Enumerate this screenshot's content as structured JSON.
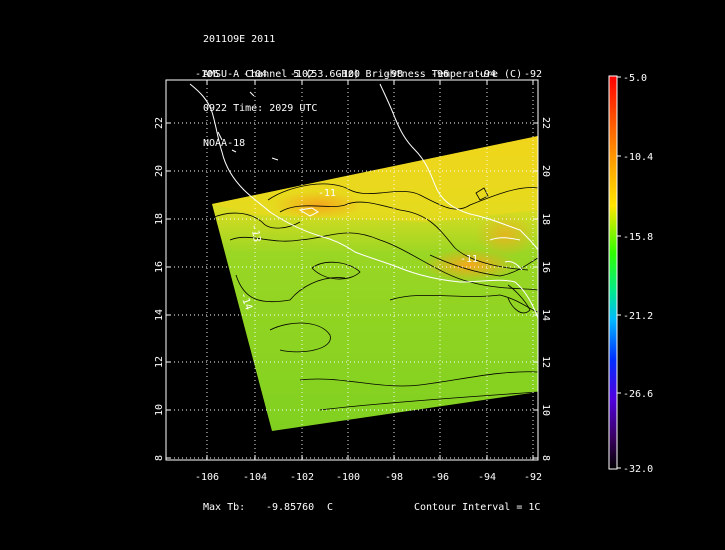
{
  "header": {
    "storm_line": "2011O9E 2011",
    "product_line": "AMSU-A Channel 5 (53.6GHz) Brightness Temperature (C)",
    "time_line": "0922 Time: 2029 UTC",
    "satellite_line": "NOAA-18"
  },
  "map": {
    "lon_ticks": [
      "-106",
      "-104",
      "-102",
      "-100",
      "-98",
      "-96",
      "-94",
      "-92"
    ],
    "lat_ticks": [
      "8",
      "10",
      "12",
      "14",
      "16",
      "18",
      "20",
      "22"
    ],
    "contour_labels": [
      "-11",
      "-13",
      "-14",
      "-11"
    ],
    "land_color": "#000000",
    "coast_color": "#ffffff",
    "swath_colors": [
      "#7fd21f",
      "#f0d81c",
      "#f5a818"
    ]
  },
  "colorbar": {
    "labels": [
      "-5.0",
      "-10.4",
      "-15.8",
      "-21.2",
      "-26.6",
      "-32.0"
    ],
    "colors": [
      "#ff0000",
      "#ff8a00",
      "#ffe000",
      "#28ff00",
      "#00e8c0",
      "#0060ff",
      "#4000ff",
      "#400080",
      "#000000"
    ]
  },
  "footer": {
    "max_label": "Max Tb:",
    "max_value": "-9.85760",
    "max_unit": "C",
    "contour_text": "Contour Interval = 1C"
  }
}
